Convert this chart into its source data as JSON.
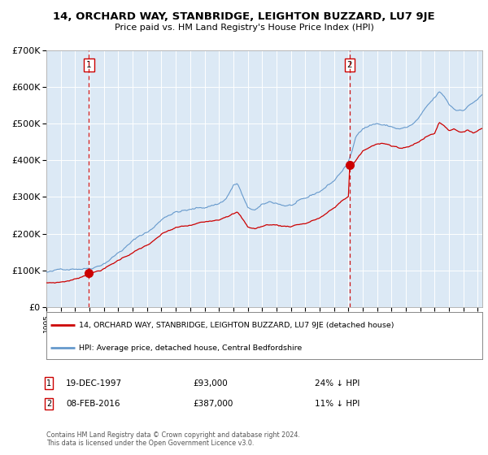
{
  "title": "14, ORCHARD WAY, STANBRIDGE, LEIGHTON BUZZARD, LU7 9JE",
  "subtitle": "Price paid vs. HM Land Registry's House Price Index (HPI)",
  "red_label": "14, ORCHARD WAY, STANBRIDGE, LEIGHTON BUZZARD, LU7 9JE (detached house)",
  "blue_label": "HPI: Average price, detached house, Central Bedfordshire",
  "annotation1_text": "19-DEC-1997",
  "annotation1_price": "£93,000",
  "annotation1_hpi": "24% ↓ HPI",
  "annotation2_text": "08-FEB-2016",
  "annotation2_price": "£387,000",
  "annotation2_hpi": "11% ↓ HPI",
  "footnote": "Contains HM Land Registry data © Crown copyright and database right 2024.\nThis data is licensed under the Open Government Licence v3.0.",
  "point1_year": 1997.96,
  "point1_value": 93000,
  "point2_year": 2016.08,
  "point2_value": 387000,
  "background_color": "#dce9f5",
  "red_line_color": "#cc0000",
  "blue_line_color": "#6699cc",
  "grid_color": "#ffffff",
  "ylim": [
    0,
    700000
  ],
  "xlim_start": 1995.0,
  "xlim_end": 2025.3
}
